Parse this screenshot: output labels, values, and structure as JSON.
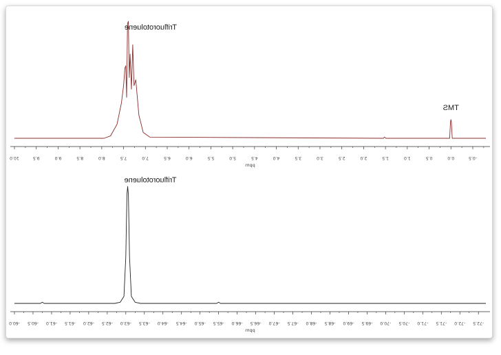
{
  "chart_data": [
    {
      "type": "line",
      "xlabel": "ppm",
      "xlim": [
        10.0,
        -0.8
      ],
      "reversed_axis": true,
      "ticks": [
        "10.0",
        "9.5",
        "9.0",
        "8.5",
        "8.0",
        "7.5",
        "7.0",
        "6.5",
        "6.0",
        "5.5",
        "5.0",
        "4.5",
        "4.0",
        "3.5",
        "3.0",
        "2.5",
        "2.0",
        "1.5",
        "1.0",
        "0.5",
        "0.0",
        "-0.5"
      ],
      "annotations": [
        {
          "text": "Trifluorotoluene",
          "x": 7.4
        },
        {
          "text": "TMS",
          "x": 0.0
        }
      ],
      "series": [
        {
          "color": "#8a2b2b",
          "points": [
            {
              "x": 10.0,
              "y": 0.0
            },
            {
              "x": 7.95,
              "y": 0.0
            },
            {
              "x": 7.8,
              "y": 0.02
            },
            {
              "x": 7.65,
              "y": 0.12
            },
            {
              "x": 7.55,
              "y": 0.3
            },
            {
              "x": 7.5,
              "y": 0.45
            },
            {
              "x": 7.47,
              "y": 0.6
            },
            {
              "x": 7.45,
              "y": 0.62
            },
            {
              "x": 7.43,
              "y": 0.35
            },
            {
              "x": 7.41,
              "y": 0.98
            },
            {
              "x": 7.39,
              "y": 1.0
            },
            {
              "x": 7.37,
              "y": 0.52
            },
            {
              "x": 7.35,
              "y": 0.72
            },
            {
              "x": 7.32,
              "y": 0.42
            },
            {
              "x": 7.29,
              "y": 0.8
            },
            {
              "x": 7.26,
              "y": 0.45
            },
            {
              "x": 7.22,
              "y": 0.5
            },
            {
              "x": 7.15,
              "y": 0.2
            },
            {
              "x": 7.05,
              "y": 0.05
            },
            {
              "x": 6.9,
              "y": 0.01
            },
            {
              "x": 1.55,
              "y": 0.0
            },
            {
              "x": 1.52,
              "y": 0.01
            },
            {
              "x": 1.49,
              "y": 0.0
            },
            {
              "x": 0.03,
              "y": 0.0
            },
            {
              "x": 0.01,
              "y": 0.14
            },
            {
              "x": 0.0,
              "y": 0.16
            },
            {
              "x": -0.01,
              "y": 0.14
            },
            {
              "x": -0.03,
              "y": 0.0
            },
            {
              "x": -0.8,
              "y": 0.0
            }
          ]
        }
      ]
    },
    {
      "type": "line",
      "xlabel": "ppm",
      "xlim": [
        -60.0,
        -72.7
      ],
      "reversed_axis": true,
      "ticks": [
        "-60.0",
        "-60.5",
        "-61.0",
        "-61.5",
        "-62.0",
        "-62.5",
        "-63.0",
        "-63.5",
        "-64.0",
        "-64.5",
        "-65.0",
        "-65.5",
        "-66.0",
        "-66.5",
        "-67.0",
        "-67.5",
        "-68.0",
        "-68.5",
        "-69.0",
        "-69.5",
        "-70.0",
        "-70.5",
        "-71.0",
        "-71.5",
        "-72.0",
        "-72.5"
      ],
      "annotations": [
        {
          "text": "Trifluorotoluene",
          "x": -63.05
        }
      ],
      "series": [
        {
          "color": "#222222",
          "points": [
            {
              "x": -60.0,
              "y": 0.0
            },
            {
              "x": -60.7,
              "y": 0.0
            },
            {
              "x": -60.75,
              "y": 0.01
            },
            {
              "x": -60.8,
              "y": 0.0
            },
            {
              "x": -62.7,
              "y": 0.0
            },
            {
              "x": -62.85,
              "y": 0.01
            },
            {
              "x": -62.95,
              "y": 0.06
            },
            {
              "x": -63.0,
              "y": 0.4
            },
            {
              "x": -63.03,
              "y": 0.93
            },
            {
              "x": -63.05,
              "y": 1.0
            },
            {
              "x": -63.07,
              "y": 0.93
            },
            {
              "x": -63.1,
              "y": 0.4
            },
            {
              "x": -63.15,
              "y": 0.06
            },
            {
              "x": -63.25,
              "y": 0.01
            },
            {
              "x": -63.4,
              "y": 0.0
            },
            {
              "x": -65.45,
              "y": 0.0
            },
            {
              "x": -65.5,
              "y": 0.01
            },
            {
              "x": -65.55,
              "y": 0.0
            },
            {
              "x": -72.7,
              "y": 0.0
            }
          ]
        }
      ]
    }
  ]
}
